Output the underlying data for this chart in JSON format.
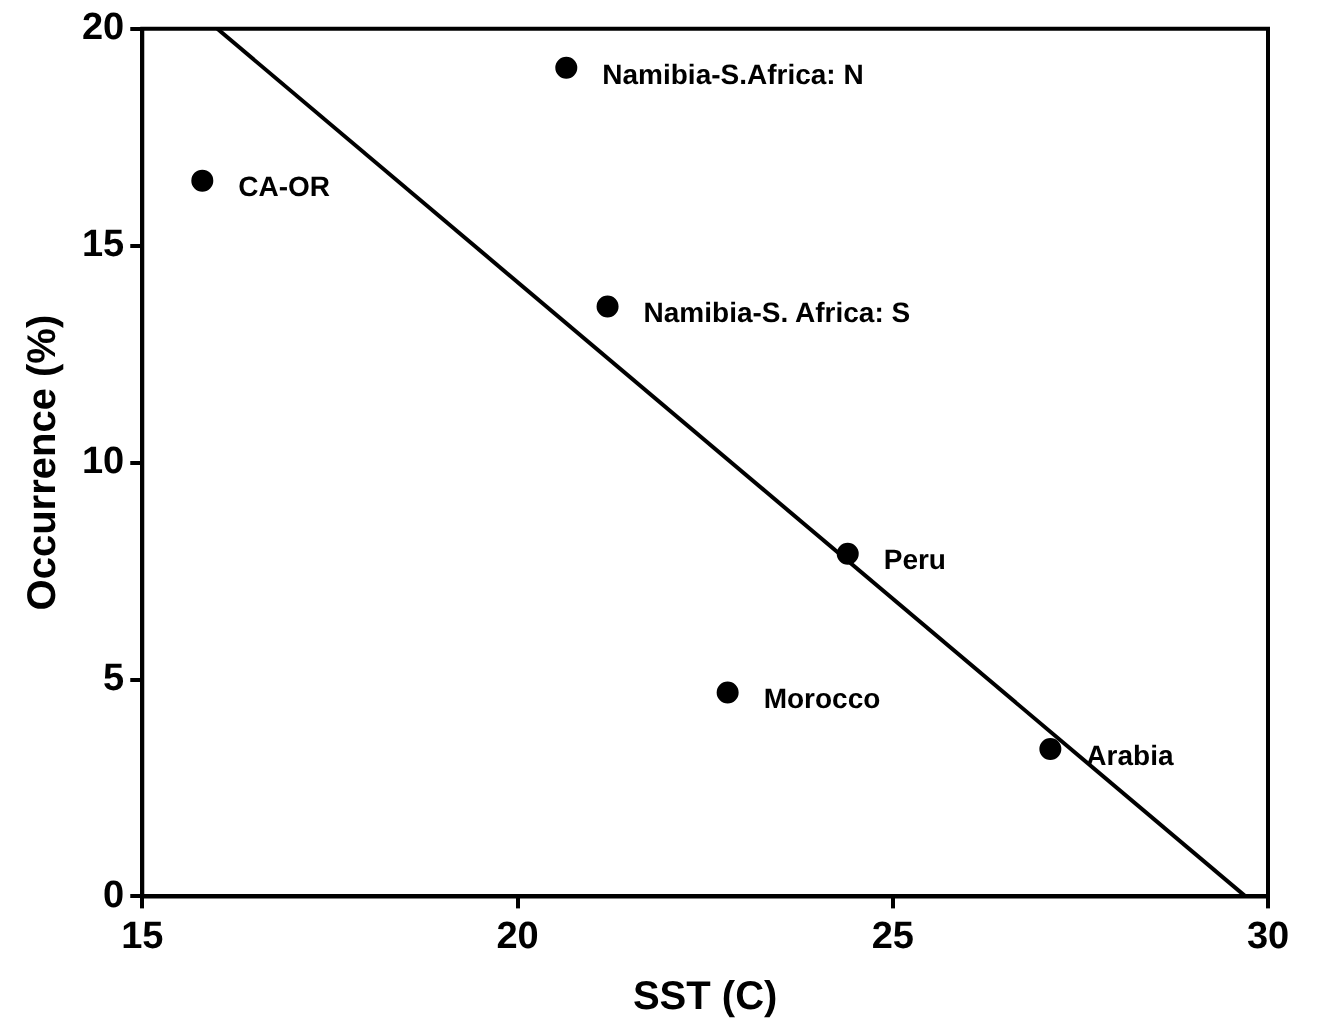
{
  "chart_data": {
    "type": "scatter",
    "xlabel": "SST (C)",
    "ylabel": "Occurrence (%)",
    "xlim": [
      15,
      30
    ],
    "xticks": [
      15,
      20,
      25,
      30
    ],
    "ylim": [
      0,
      20
    ],
    "yticks": [
      0,
      5,
      10,
      15,
      20
    ],
    "grid": false,
    "legend": false,
    "marker": "circle",
    "series": [
      {
        "type": "scatter",
        "color": "#000000",
        "x": [
          15.8,
          20.65,
          21.2,
          24.4,
          22.8,
          27.1
        ],
        "values": [
          16.5,
          19.1,
          13.6,
          7.9,
          4.7,
          3.4
        ]
      },
      {
        "type": "line",
        "color": "#000000",
        "marker": "none",
        "line_style": "solid",
        "x": [
          16,
          29.7
        ],
        "values": [
          20,
          0
        ]
      }
    ],
    "annotations": [
      {
        "text": "CA-OR",
        "x": 15.8,
        "y": 16.5
      },
      {
        "text": "Namibia-S.Africa: N",
        "x": 20.65,
        "y": 19.1
      },
      {
        "text": "Namibia-S. Africa: S",
        "x": 21.2,
        "y": 13.6
      },
      {
        "text": "Peru",
        "x": 24.4,
        "y": 7.9
      },
      {
        "text": "Morocco",
        "x": 22.8,
        "y": 4.7
      },
      {
        "text": "Arabia",
        "x": 27.1,
        "y": 3.4
      }
    ]
  }
}
